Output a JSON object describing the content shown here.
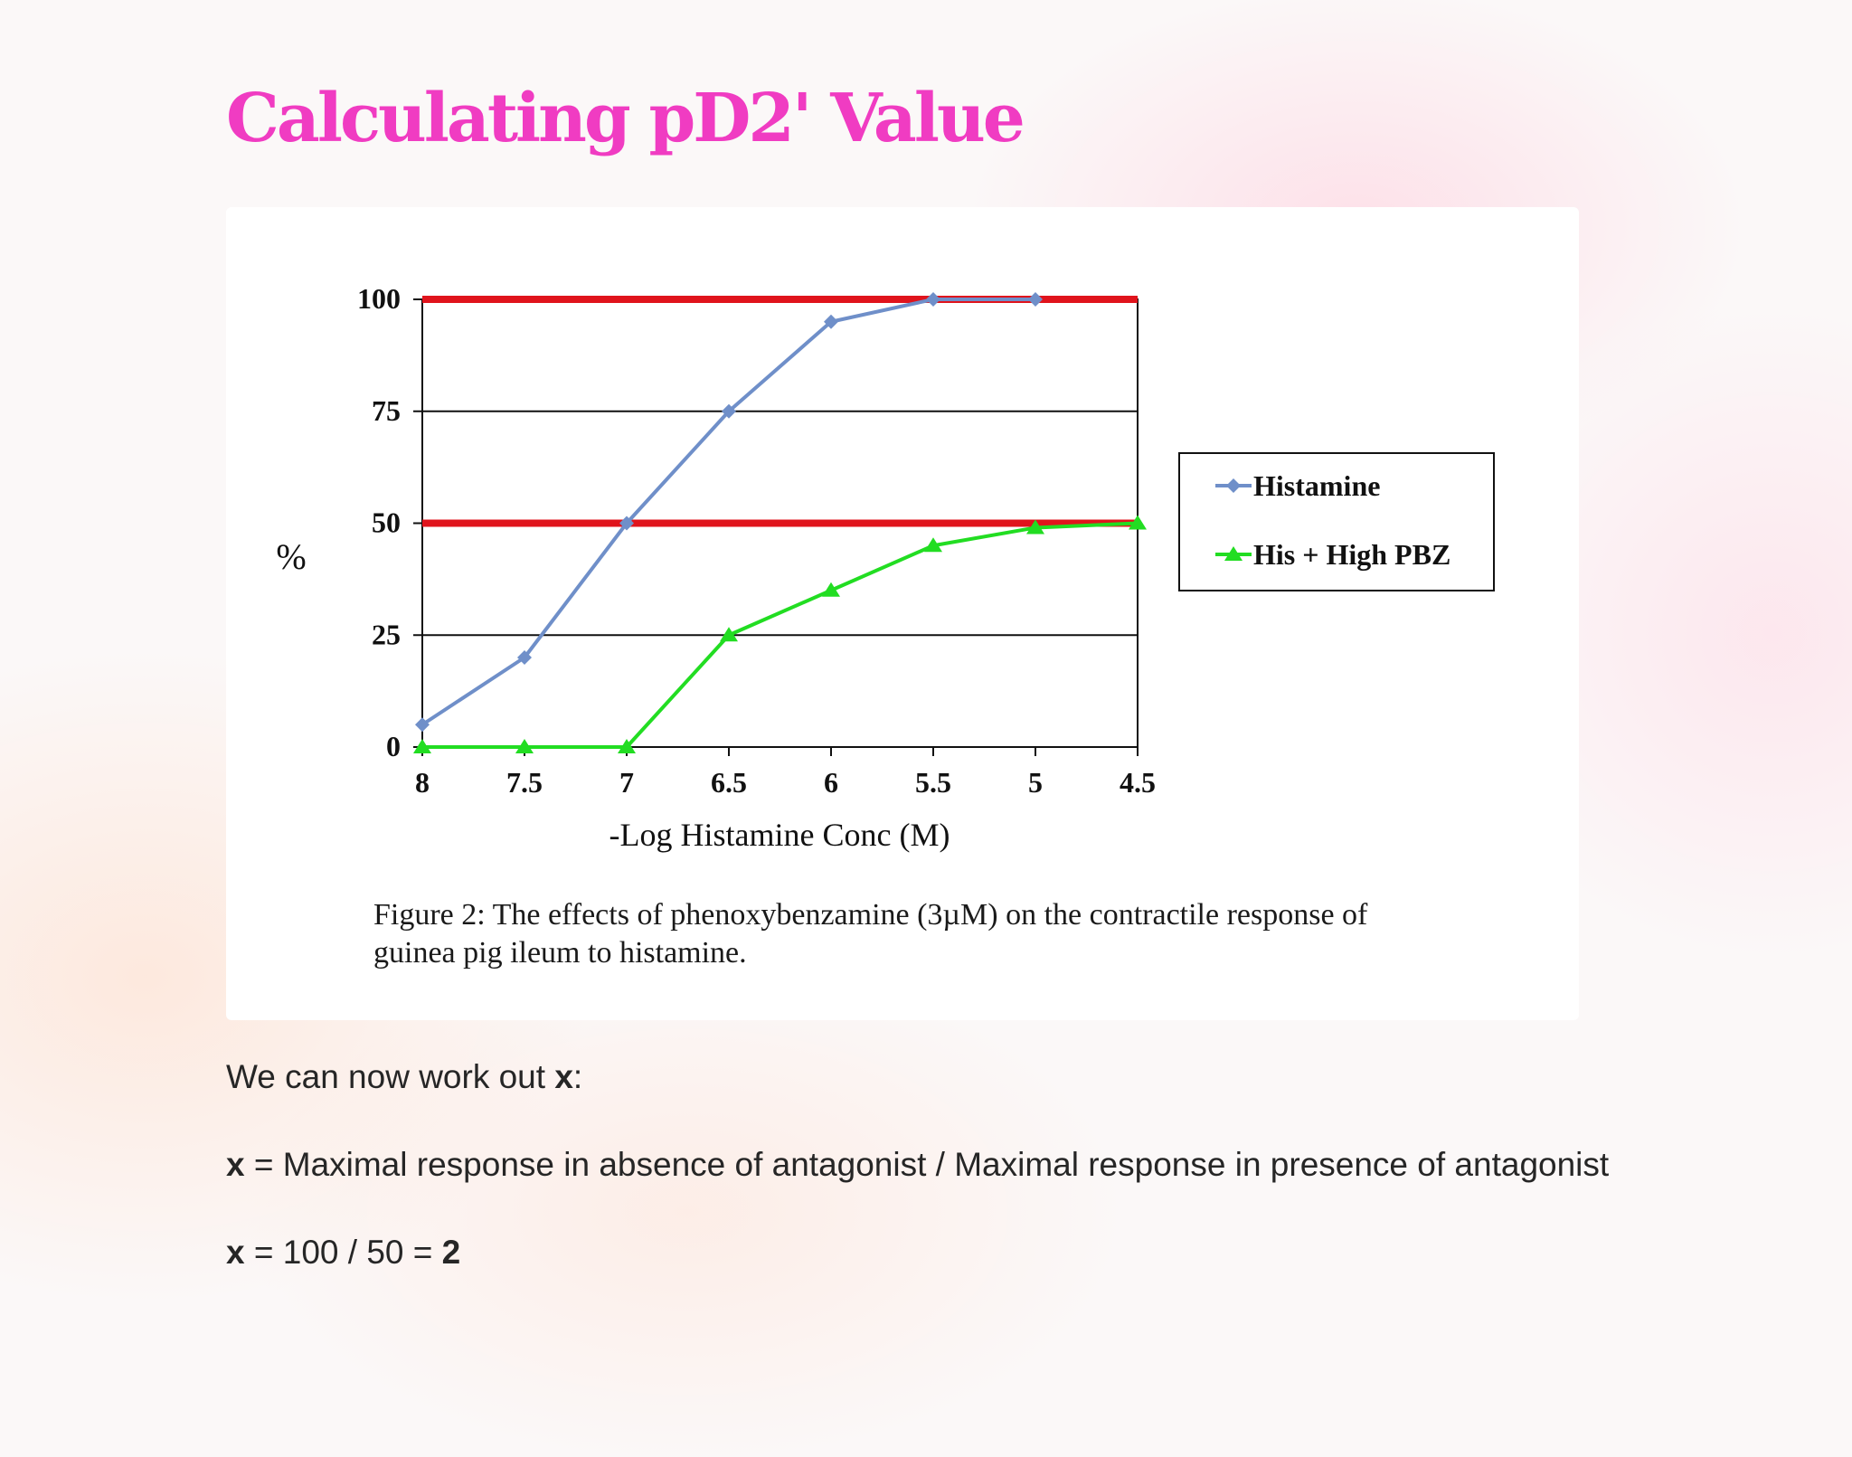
{
  "title": "Calculating pD2' Value",
  "figure": {
    "caption_line1": "Figure 2: The effects of phenoxybenzamine (3µM) on the contractile response of",
    "caption_line2": "guinea  pig ileum  to histamine."
  },
  "chart_data": {
    "type": "line",
    "x": [
      8,
      7.5,
      7,
      6.5,
      6,
      5.5,
      5,
      4.5
    ],
    "x_tick_labels": [
      "8",
      "7.5",
      "7",
      "6.5",
      "6",
      "5.5",
      "5",
      "4.5"
    ],
    "x_reversed": true,
    "xlabel": "-Log Histamine  Conc (M)",
    "ylabel": "%",
    "yticks": [
      0,
      25,
      50,
      75,
      100
    ],
    "ylim": [
      0,
      100
    ],
    "grid": "horizontal",
    "legend_position": "right",
    "series": [
      {
        "name": "Histamine",
        "color": "#6f8fc9",
        "marker": "diamond",
        "values": [
          5,
          20,
          50,
          75,
          95,
          100,
          100,
          null
        ]
      },
      {
        "name": "His + High PBZ",
        "color": "#22dd22",
        "marker": "triangle",
        "values": [
          0,
          0,
          0,
          25,
          35,
          45,
          49,
          50
        ]
      }
    ],
    "reference_lines": [
      {
        "y": 100,
        "color": "#e0141c"
      },
      {
        "y": 50,
        "color": "#e0141c"
      }
    ]
  },
  "text": {
    "line1": {
      "pre": "We can now work out ",
      "var": "x",
      "post": ":"
    },
    "line2": {
      "var": "x",
      "rest": " = Maximal response in absence of antagonist / Maximal response in presence of antagonist"
    },
    "line3": {
      "var": "x",
      "mid": " = 100 / 50  = ",
      "result": "2"
    }
  }
}
